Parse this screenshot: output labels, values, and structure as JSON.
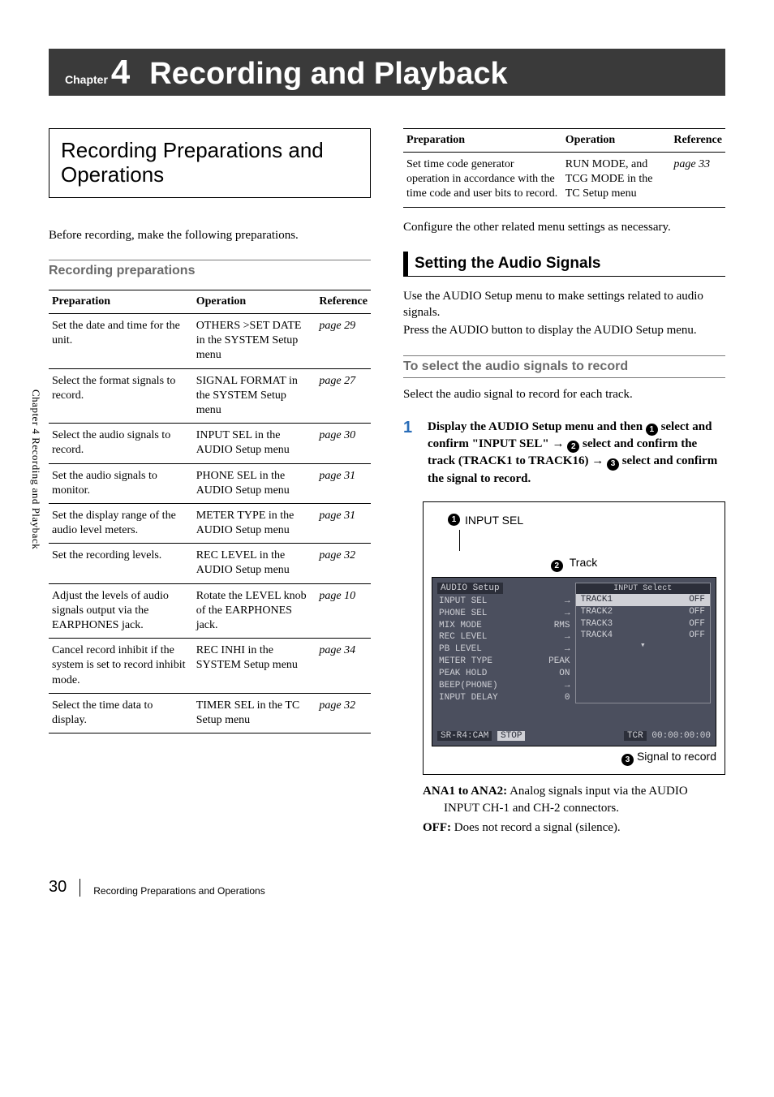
{
  "chapter": {
    "label": "Chapter",
    "number": "4",
    "title": "Recording and Playback"
  },
  "side_label": "Chapter 4  Recording and Playback",
  "left": {
    "section_title": "Recording Preparations and Operations",
    "intro": "Before recording, make the following preparations.",
    "subheading": "Recording preparations",
    "table": {
      "headers": [
        "Preparation",
        "Operation",
        "Reference"
      ],
      "rows": [
        {
          "prep": "Set the date and time for the unit.",
          "op": "OTHERS >SET DATE in the SYSTEM Setup menu",
          "ref": "page 29"
        },
        {
          "prep": "Select the format signals to record.",
          "op": "SIGNAL FORMAT in the SYSTEM Setup menu",
          "ref": "page 27"
        },
        {
          "prep": "Select the audio signals to record.",
          "op": "INPUT SEL in the AUDIO Setup menu",
          "ref": "page 30"
        },
        {
          "prep": "Set the audio signals to monitor.",
          "op": "PHONE SEL in the AUDIO Setup menu",
          "ref": "page 31"
        },
        {
          "prep": "Set the display range of the audio level meters.",
          "op": "METER TYPE in the AUDIO Setup menu",
          "ref": "page 31"
        },
        {
          "prep": "Set the recording levels.",
          "op": "REC LEVEL in the AUDIO Setup menu",
          "ref": "page 32"
        },
        {
          "prep": "Adjust the levels of audio signals output via the EARPHONES jack.",
          "op": "Rotate the LEVEL knob of the EARPHONES jack.",
          "ref": "page 10"
        },
        {
          "prep": "Cancel record inhibit if the system is set to record inhibit mode.",
          "op": "REC INHI in the SYSTEM Setup menu",
          "ref": "page 34"
        },
        {
          "prep": "Select the time data to display.",
          "op": "TIMER SEL in the TC Setup menu",
          "ref": "page 32"
        }
      ]
    }
  },
  "right": {
    "table": {
      "headers": [
        "Preparation",
        "Operation",
        "Reference"
      ],
      "rows": [
        {
          "prep": "Set time code generator operation in accordance with the time code and user bits to record.",
          "op": "RUN MODE, and TCG MODE in the TC Setup menu",
          "ref": "page 33"
        }
      ]
    },
    "after_table": "Configure the other related menu settings as necessary.",
    "heading": "Setting the Audio Signals",
    "body1": "Use the AUDIO Setup menu to make settings related to audio signals.",
    "body2": "Press the AUDIO button to display the AUDIO Setup menu.",
    "subheading": "To select the audio signals to record",
    "body3": "Select the audio signal to record for each track.",
    "step": {
      "num": "1",
      "text_parts": {
        "a": "Display the AUDIO Setup menu and then ",
        "b": " select and confirm \"INPUT SEL\" → ",
        "c": " select and confirm the track (TRACK1 to TRACK16) → ",
        "d": " select and confirm the signal to record."
      }
    },
    "callouts": {
      "c1": "INPUT SEL",
      "c2": "Track",
      "c3": "Signal to record"
    },
    "lcd": {
      "menu_title": "AUDIO Setup",
      "left_items": [
        {
          "k": "INPUT SEL",
          "v": "→"
        },
        {
          "k": "PHONE SEL",
          "v": "→"
        },
        {
          "k": "MIX MODE",
          "v": "RMS"
        },
        {
          "k": "REC LEVEL",
          "v": "→"
        },
        {
          "k": "PB LEVEL",
          "v": "→"
        },
        {
          "k": "METER TYPE",
          "v": "PEAK"
        },
        {
          "k": "PEAK HOLD",
          "v": "ON"
        },
        {
          "k": "BEEP(PHONE)",
          "v": "→"
        },
        {
          "k": "INPUT DELAY",
          "v": "0"
        }
      ],
      "right_title": "INPUT Select",
      "right_items": [
        {
          "k": "TRACK1",
          "v": "OFF",
          "sel": true
        },
        {
          "k": "TRACK2",
          "v": "OFF"
        },
        {
          "k": "TRACK3",
          "v": "OFF"
        },
        {
          "k": "TRACK4",
          "v": "OFF"
        }
      ],
      "status_left": "SR-R4:CAM",
      "status_stop": "STOP",
      "status_tcr": "TCR",
      "status_tc": "00:00:00:00"
    },
    "defs": [
      {
        "term": "ANA1 to ANA2:",
        "text": " Analog signals input via the AUDIO INPUT CH-1 and CH-2 connectors."
      },
      {
        "term": "OFF:",
        "text": " Does not record a signal (silence)."
      }
    ]
  },
  "footer": {
    "page": "30",
    "title": "Recording Preparations and Operations"
  }
}
